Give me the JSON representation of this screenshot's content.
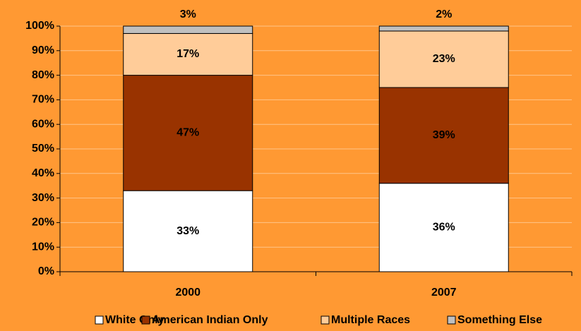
{
  "chart_data": {
    "type": "stacked_bar",
    "categories": [
      "2000",
      "2007"
    ],
    "series": [
      {
        "name": "White Only",
        "color": "#ffffff",
        "values": [
          33,
          36
        ],
        "value_labels": [
          "33%",
          "36%"
        ]
      },
      {
        "name": "American Indian Only",
        "color": "#993300",
        "values": [
          47,
          39
        ],
        "value_labels": [
          "47%",
          "39%"
        ]
      },
      {
        "name": "Multiple Races",
        "color": "#ffcc99",
        "values": [
          17,
          23
        ],
        "value_labels": [
          "17%",
          "23%"
        ]
      },
      {
        "name": "Something Else",
        "color": "#c0c0c0",
        "values": [
          3,
          2
        ],
        "value_labels": [
          "3%",
          "2%"
        ]
      }
    ],
    "ylim": [
      0,
      100
    ],
    "yticks": [
      {
        "value": 0,
        "label": "0%"
      },
      {
        "value": 10,
        "label": "10%"
      },
      {
        "value": 20,
        "label": "20%"
      },
      {
        "value": 30,
        "label": "30%"
      },
      {
        "value": 40,
        "label": "40%"
      },
      {
        "value": 50,
        "label": "50%"
      },
      {
        "value": 60,
        "label": "60%"
      },
      {
        "value": 70,
        "label": "70%"
      },
      {
        "value": 80,
        "label": "80%"
      },
      {
        "value": 90,
        "label": "90%"
      },
      {
        "value": 100,
        "label": "100%"
      }
    ],
    "grid": true,
    "legend": "bottom"
  }
}
